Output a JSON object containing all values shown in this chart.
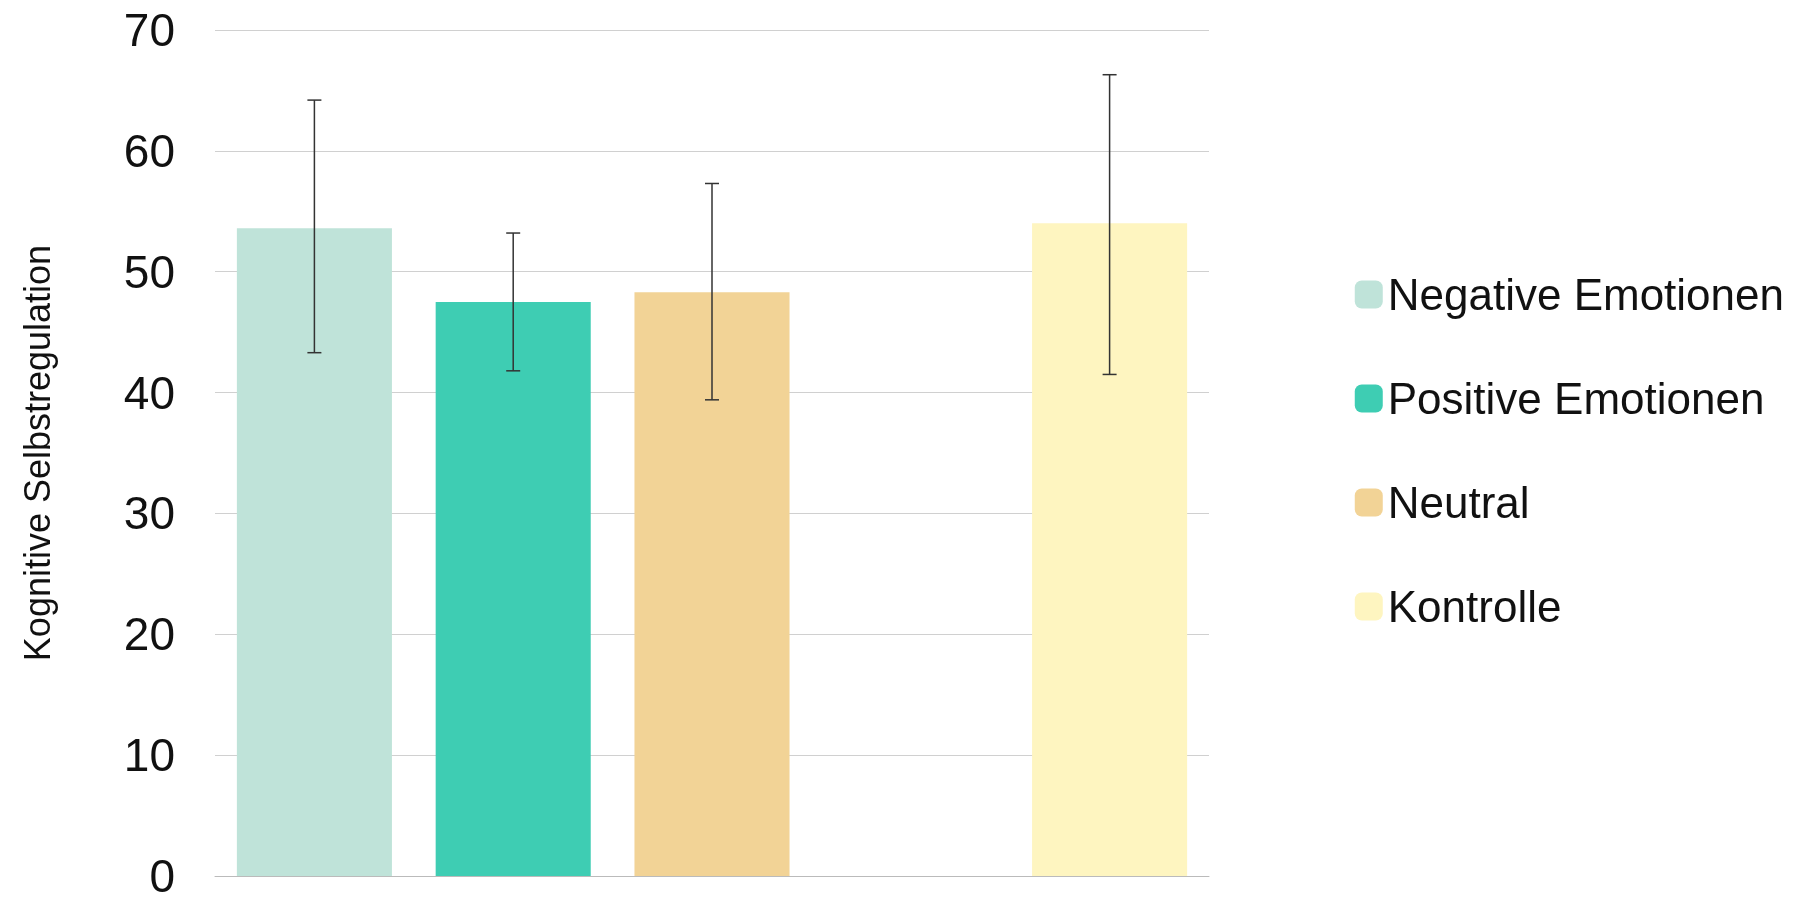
{
  "chart_data": {
    "type": "bar",
    "ylabel": "Kognitive Selbstregulation",
    "categories": [
      null,
      null,
      null,
      null,
      null
    ],
    "stacked": true,
    "series": [
      {
        "name": "Negative Emotionen",
        "color": "#bfe3d9",
        "values": [
          53.6,
          null,
          null,
          null,
          null
        ],
        "errors": [
          [
            43.3,
            64.2
          ],
          null,
          null,
          null,
          null
        ]
      },
      {
        "name": "Positive Emotionen",
        "color": "#3ecdb3",
        "values": [
          null,
          47.5,
          null,
          null,
          null
        ],
        "errors": [
          null,
          [
            41.8,
            53.2
          ],
          null,
          null,
          null
        ]
      },
      {
        "name": "Neutral",
        "color": "#f2d396",
        "values": [
          null,
          null,
          48.3,
          null,
          null
        ],
        "errors": [
          null,
          null,
          [
            39.4,
            57.3
          ],
          null,
          null
        ]
      },
      {
        "name": "Kontrolle",
        "color": "#fef5c0",
        "values": [
          null,
          null,
          null,
          null,
          54.0
        ],
        "errors": [
          null,
          null,
          null,
          null,
          [
            41.5,
            66.3
          ]
        ]
      }
    ],
    "ylim": [
      0,
      70
    ],
    "yticks": [
      0,
      10,
      20,
      30,
      40,
      50,
      60,
      70
    ],
    "grid": "y",
    "legend": "right"
  }
}
